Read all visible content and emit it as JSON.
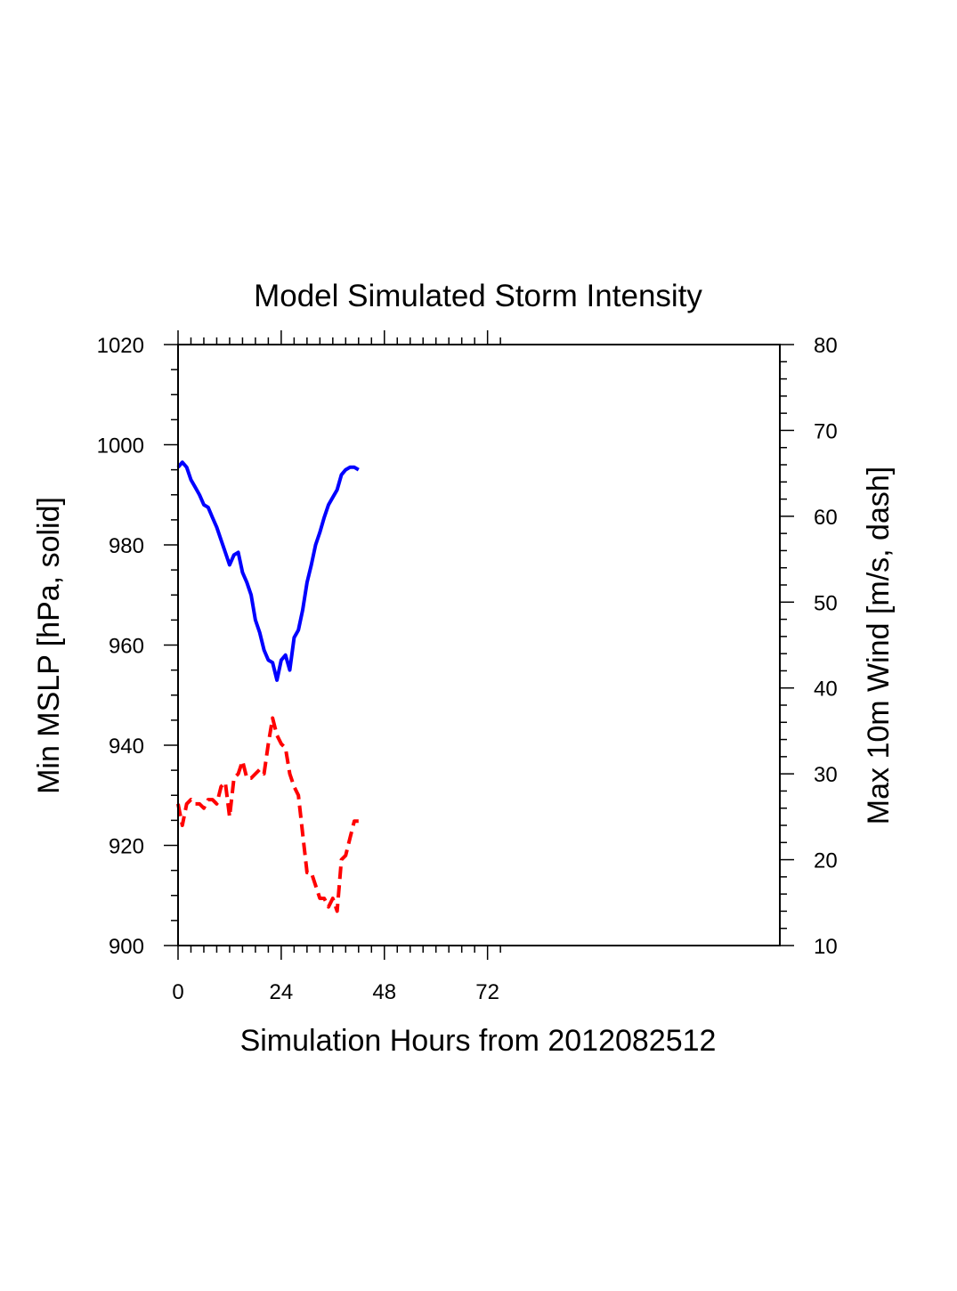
{
  "chart_data": {
    "type": "line",
    "title": "Model Simulated Storm Intensity",
    "xlabel": "Simulation Hours from 2012082512",
    "ylabel_left": "Min MSLP  [hPa, solid]",
    "ylabel_right": "Max 10m Wind  [m/s, dash]",
    "xlim": [
      0,
      140
    ],
    "x_ticks": [
      0,
      24,
      48,
      72
    ],
    "ylim_left": [
      900,
      1020
    ],
    "y_ticks_left": [
      900,
      920,
      940,
      960,
      980,
      1000,
      1020
    ],
    "ylim_right": [
      10,
      80
    ],
    "y_ticks_right": [
      10,
      20,
      30,
      40,
      50,
      60,
      70,
      80
    ],
    "grid": false,
    "series": [
      {
        "axis": "left",
        "style": "solid",
        "color": "#0000ff",
        "x": [
          0,
          1,
          2,
          3,
          4,
          5,
          6,
          7,
          8,
          9,
          10,
          11,
          12,
          13,
          14,
          15,
          16,
          17,
          18,
          19,
          20,
          21,
          22,
          23,
          24,
          25,
          26,
          27,
          28,
          29,
          30,
          31,
          32,
          33,
          34,
          35,
          36,
          37,
          38,
          39,
          40,
          41,
          42
        ],
        "values": [
          995.5,
          996.5,
          995.5,
          993.0,
          991.5,
          990.0,
          988.0,
          987.5,
          985.5,
          983.5,
          981.0,
          978.5,
          976.0,
          978.0,
          978.5,
          974.5,
          972.5,
          970.0,
          965.0,
          962.5,
          959.0,
          957.0,
          956.5,
          953.0,
          957.0,
          958.0,
          955.0,
          961.5,
          963.0,
          967.0,
          972.5,
          976.0,
          980.0,
          982.5,
          985.5,
          988.0,
          989.5,
          991.0,
          994.0,
          995.0,
          995.5,
          995.5,
          995.0
        ]
      },
      {
        "axis": "right",
        "style": "dashed",
        "color": "#ff0000",
        "x": [
          0,
          1,
          2,
          3,
          4,
          5,
          6,
          7,
          8,
          9,
          10,
          11,
          12,
          13,
          14,
          15,
          16,
          17,
          18,
          19,
          20,
          21,
          22,
          23,
          24,
          25,
          26,
          27,
          28,
          29,
          30,
          31,
          32,
          33,
          34,
          35,
          36,
          37,
          38,
          39,
          40,
          41,
          42
        ],
        "values": [
          26.5,
          24.0,
          26.5,
          27.0,
          26.5,
          26.5,
          26.0,
          27.0,
          27.0,
          26.5,
          28.5,
          29.0,
          25.0,
          29.5,
          30.0,
          31.5,
          29.5,
          29.5,
          30.0,
          30.5,
          30.0,
          33.5,
          36.5,
          34.5,
          33.5,
          33.0,
          30.0,
          28.5,
          27.5,
          23.0,
          18.5,
          18.5,
          17.0,
          15.5,
          15.5,
          14.5,
          15.5,
          14.0,
          20.0,
          20.5,
          22.5,
          24.5,
          24.5
        ]
      }
    ]
  }
}
